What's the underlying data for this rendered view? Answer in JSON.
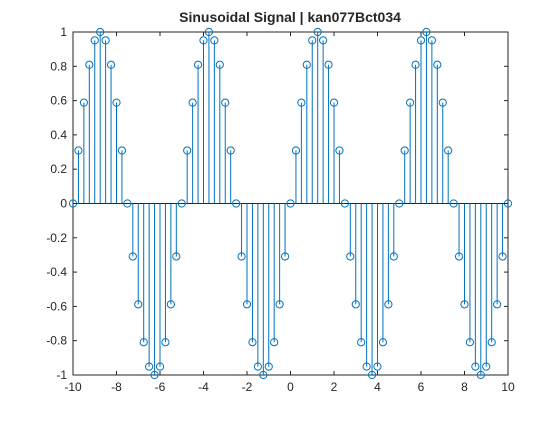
{
  "chart_data": {
    "type": "stem",
    "title": "Sinusoidal Signal | kan077Bct034",
    "xlabel": "",
    "ylabel": "",
    "xlim": [
      -10,
      10
    ],
    "ylim": [
      -1,
      1
    ],
    "x_ticks": [
      -10,
      -8,
      -6,
      -4,
      -2,
      0,
      2,
      4,
      6,
      8,
      10
    ],
    "y_ticks": [
      -1,
      -0.8,
      -0.6,
      -0.4,
      -0.2,
      0,
      0.2,
      0.4,
      0.6,
      0.8,
      1
    ],
    "x_tick_labels": [
      "-10",
      "-8",
      "-6",
      "-4",
      "-2",
      "0",
      "2",
      "4",
      "6",
      "8",
      "10"
    ],
    "y_tick_labels": [
      "-1",
      "-0.8",
      "-0.6",
      "-0.4",
      "-0.2",
      "0",
      "0.2",
      "0.4",
      "0.6",
      "0.8",
      "1"
    ],
    "grid": false,
    "series_color": "#0072BD",
    "signal": {
      "function": "sin",
      "frequency_hz": 0.2,
      "x_start": -10,
      "x_end": 10,
      "x_step": 0.25
    },
    "x": [
      -10,
      -9.75,
      -9.5,
      -9.25,
      -9,
      -8.75,
      -8.5,
      -8.25,
      -8,
      -7.75,
      -7.5,
      -7.25,
      -7,
      -6.75,
      -6.5,
      -6.25,
      -6,
      -5.75,
      -5.5,
      -5.25,
      -5,
      -4.75,
      -4.5,
      -4.25,
      -4,
      -3.75,
      -3.5,
      -3.25,
      -3,
      -2.75,
      -2.5,
      -2.25,
      -2,
      -1.75,
      -1.5,
      -1.25,
      -1,
      -0.75,
      -0.5,
      -0.25,
      0,
      0.25,
      0.5,
      0.75,
      1,
      1.25,
      1.5,
      1.75,
      2,
      2.25,
      2.5,
      2.75,
      3,
      3.25,
      3.5,
      3.75,
      4,
      4.25,
      4.5,
      4.75,
      5,
      5.25,
      5.5,
      5.75,
      6,
      6.25,
      6.5,
      6.75,
      7,
      7.25,
      7.5,
      7.75,
      8,
      8.25,
      8.5,
      8.75,
      9,
      9.25,
      9.5,
      9.75,
      10
    ],
    "y": [
      0,
      0.309,
      0.588,
      0.809,
      0.951,
      1,
      0.951,
      0.809,
      0.588,
      0.309,
      0,
      -0.309,
      -0.588,
      -0.809,
      -0.951,
      -1,
      -0.951,
      -0.809,
      -0.588,
      -0.309,
      0,
      0.309,
      0.588,
      0.809,
      0.951,
      1,
      0.951,
      0.809,
      0.588,
      0.309,
      0,
      -0.309,
      -0.588,
      -0.809,
      -0.951,
      -1,
      -0.951,
      -0.809,
      -0.588,
      -0.309,
      0,
      0.309,
      0.588,
      0.809,
      0.951,
      1,
      0.951,
      0.809,
      0.588,
      0.309,
      0,
      -0.309,
      -0.588,
      -0.809,
      -0.951,
      -1,
      -0.951,
      -0.809,
      -0.588,
      -0.309,
      0,
      0.309,
      0.588,
      0.809,
      0.951,
      1,
      0.951,
      0.809,
      0.588,
      0.309,
      0,
      -0.309,
      -0.588,
      -0.809,
      -0.951,
      -1,
      -0.951,
      -0.809,
      -0.588,
      -0.309,
      0
    ]
  }
}
